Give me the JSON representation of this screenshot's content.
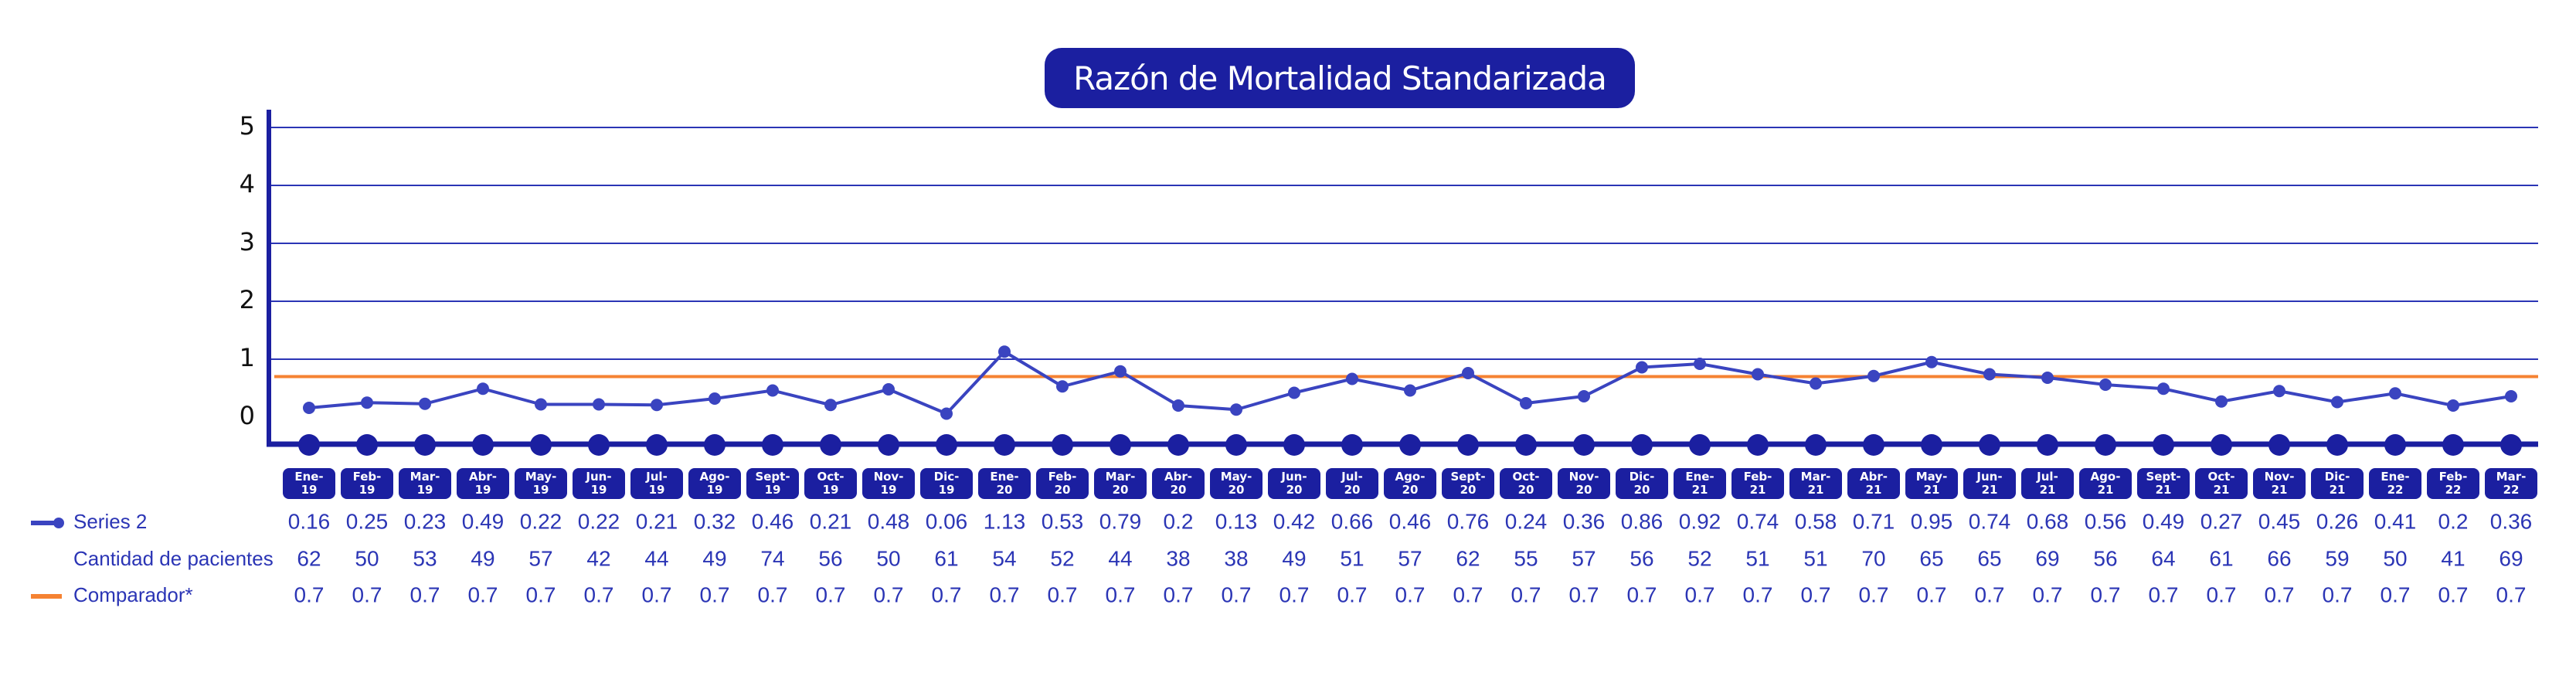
{
  "chart_data": {
    "type": "line",
    "title": "Razón de Mortalidad Standarizada",
    "y_ticks": [
      "0",
      "1",
      "2",
      "3",
      "4",
      "5"
    ],
    "ylim": [
      0,
      5
    ],
    "grid": true,
    "categories": [
      [
        "Ene-",
        "19"
      ],
      [
        "Feb-",
        "19"
      ],
      [
        "Mar-",
        "19"
      ],
      [
        "Abr-",
        "19"
      ],
      [
        "May-",
        "19"
      ],
      [
        "Jun-",
        "19"
      ],
      [
        "Jul-",
        "19"
      ],
      [
        "Ago-",
        "19"
      ],
      [
        "Sept-",
        "19"
      ],
      [
        "Oct-",
        "19"
      ],
      [
        "Nov-",
        "19"
      ],
      [
        "Dic-",
        "19"
      ],
      [
        "Ene-",
        "20"
      ],
      [
        "Feb-",
        "20"
      ],
      [
        "Mar-",
        "20"
      ],
      [
        "Abr-",
        "20"
      ],
      [
        "May-",
        "20"
      ],
      [
        "Jun-",
        "20"
      ],
      [
        "Jul-",
        "20"
      ],
      [
        "Ago-",
        "20"
      ],
      [
        "Sept-",
        "20"
      ],
      [
        "Oct-",
        "20"
      ],
      [
        "Nov-",
        "20"
      ],
      [
        "Dic-",
        "20"
      ],
      [
        "Ene-",
        "21"
      ],
      [
        "Feb-",
        "21"
      ],
      [
        "Mar-",
        "21"
      ],
      [
        "Abr-",
        "21"
      ],
      [
        "May-",
        "21"
      ],
      [
        "Jun-",
        "21"
      ],
      [
        "Jul-",
        "21"
      ],
      [
        "Ago-",
        "21"
      ],
      [
        "Sept-",
        "21"
      ],
      [
        "Oct-",
        "21"
      ],
      [
        "Nov-",
        "21"
      ],
      [
        "Dic-",
        "21"
      ],
      [
        "Ene-",
        "22"
      ],
      [
        "Feb-",
        "22"
      ],
      [
        "Mar-",
        "22"
      ]
    ],
    "series": [
      {
        "name": "Series 2",
        "values": [
          0.16,
          0.25,
          0.23,
          0.49,
          0.22,
          0.22,
          0.21,
          0.32,
          0.46,
          0.21,
          0.48,
          0.06,
          1.13,
          0.53,
          0.79,
          0.2,
          0.13,
          0.42,
          0.66,
          0.46,
          0.76,
          0.24,
          0.36,
          0.86,
          0.92,
          0.74,
          0.58,
          0.71,
          0.95,
          0.74,
          0.68,
          0.56,
          0.49,
          0.27,
          0.45,
          0.26,
          0.41,
          0.2,
          0.36
        ],
        "color": "#3a44c0",
        "plotted": true
      },
      {
        "name": "Cantidad de pacientes",
        "values": [
          62,
          50,
          53,
          49,
          57,
          42,
          44,
          49,
          74,
          56,
          50,
          61,
          54,
          52,
          44,
          38,
          38,
          49,
          51,
          57,
          62,
          55,
          57,
          56,
          52,
          51,
          51,
          70,
          65,
          65,
          69,
          56,
          64,
          61,
          66,
          59,
          50,
          41,
          69
        ],
        "plotted": false
      },
      {
        "name": "Comparador*",
        "values": [
          0.7,
          0.7,
          0.7,
          0.7,
          0.7,
          0.7,
          0.7,
          0.7,
          0.7,
          0.7,
          0.7,
          0.7,
          0.7,
          0.7,
          0.7,
          0.7,
          0.7,
          0.7,
          0.7,
          0.7,
          0.7,
          0.7,
          0.7,
          0.7,
          0.7,
          0.7,
          0.7,
          0.7,
          0.7,
          0.7,
          0.7,
          0.7,
          0.7,
          0.7,
          0.7,
          0.7,
          0.7,
          0.7,
          0.7
        ],
        "color": "#f58232",
        "plotted": true
      }
    ]
  },
  "colors": {
    "navy": "#1b1fa0",
    "series_line": "#3a44c0",
    "comparator": "#f58232",
    "table_text": "#2b35b5"
  }
}
